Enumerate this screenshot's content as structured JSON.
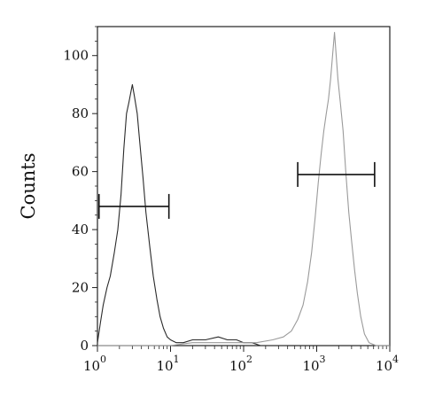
{
  "chart_data": {
    "type": "line",
    "title": "",
    "xlabel": "",
    "ylabel": "Counts",
    "x_scale": "log",
    "xlim": [
      1,
      10000
    ],
    "ylim": [
      0,
      110
    ],
    "grid": false,
    "y_ticks": [
      0,
      20,
      40,
      60,
      80,
      100
    ],
    "y_tick_labels": [
      "0",
      "20",
      "40",
      "60",
      "80",
      "100"
    ],
    "x_ticks": [
      1,
      10,
      100,
      1000,
      10000
    ],
    "x_tick_labels": [
      {
        "base": "10",
        "exp": "0"
      },
      {
        "base": "10",
        "exp": "1"
      },
      {
        "base": "10",
        "exp": "2"
      },
      {
        "base": "10",
        "exp": "3"
      },
      {
        "base": "10",
        "exp": "4"
      }
    ],
    "series": [
      {
        "color": "#2a2a2a",
        "points": [
          [
            1.0,
            1
          ],
          [
            1.1,
            8
          ],
          [
            1.2,
            14
          ],
          [
            1.35,
            20
          ],
          [
            1.5,
            24
          ],
          [
            1.7,
            32
          ],
          [
            1.9,
            40
          ],
          [
            2.1,
            52
          ],
          [
            2.3,
            68
          ],
          [
            2.5,
            80
          ],
          [
            2.7,
            84
          ],
          [
            2.9,
            88
          ],
          [
            3.0,
            90
          ],
          [
            3.2,
            86
          ],
          [
            3.5,
            80
          ],
          [
            3.8,
            70
          ],
          [
            4.2,
            58
          ],
          [
            4.6,
            46
          ],
          [
            5.2,
            34
          ],
          [
            5.8,
            24
          ],
          [
            6.5,
            16
          ],
          [
            7.2,
            10
          ],
          [
            8.0,
            6
          ],
          [
            9.0,
            3
          ],
          [
            10,
            2
          ],
          [
            12,
            1
          ],
          [
            15,
            1
          ],
          [
            20,
            2
          ],
          [
            30,
            2
          ],
          [
            45,
            3
          ],
          [
            60,
            2
          ],
          [
            80,
            2
          ],
          [
            100,
            1
          ],
          [
            130,
            1
          ],
          [
            170,
            0
          ],
          [
            250,
            0
          ],
          [
            400,
            0
          ]
        ]
      },
      {
        "color": "#9a9a9a",
        "points": [
          [
            1.0,
            0
          ],
          [
            2,
            0
          ],
          [
            5,
            0
          ],
          [
            10,
            0
          ],
          [
            20,
            1
          ],
          [
            40,
            1
          ],
          [
            80,
            1
          ],
          [
            150,
            1
          ],
          [
            250,
            2
          ],
          [
            350,
            3
          ],
          [
            450,
            5
          ],
          [
            550,
            9
          ],
          [
            650,
            14
          ],
          [
            750,
            22
          ],
          [
            850,
            32
          ],
          [
            950,
            44
          ],
          [
            1050,
            56
          ],
          [
            1150,
            66
          ],
          [
            1250,
            74
          ],
          [
            1350,
            80
          ],
          [
            1450,
            85
          ],
          [
            1550,
            92
          ],
          [
            1650,
            100
          ],
          [
            1750,
            108
          ],
          [
            1850,
            100
          ],
          [
            1950,
            92
          ],
          [
            2100,
            84
          ],
          [
            2300,
            74
          ],
          [
            2500,
            60
          ],
          [
            2750,
            46
          ],
          [
            3000,
            36
          ],
          [
            3300,
            26
          ],
          [
            3600,
            18
          ],
          [
            4000,
            10
          ],
          [
            4500,
            4
          ],
          [
            5200,
            1
          ],
          [
            6500,
            0
          ],
          [
            10000,
            0
          ]
        ]
      }
    ],
    "gates": [
      {
        "x_start": 1.05,
        "x_end": 9.5,
        "y": 48
      },
      {
        "x_start": 550,
        "x_end": 6200,
        "y": 59
      }
    ]
  }
}
